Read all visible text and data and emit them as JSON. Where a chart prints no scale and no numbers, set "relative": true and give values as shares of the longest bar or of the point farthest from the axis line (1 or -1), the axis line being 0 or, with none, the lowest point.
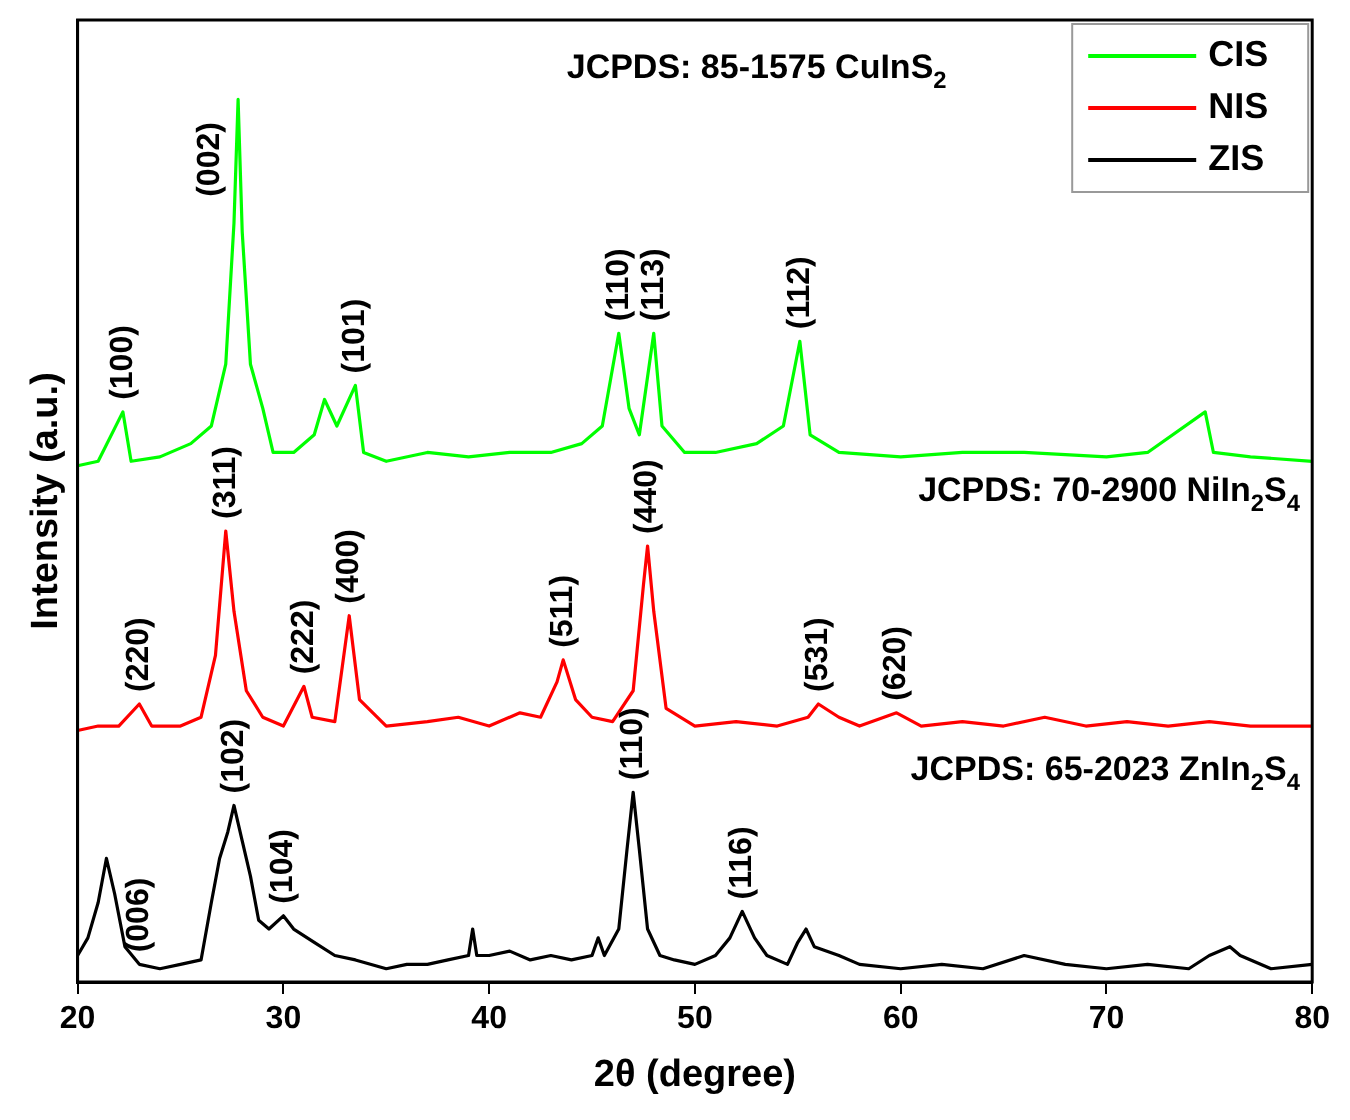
{
  "chart_data": {
    "type": "line",
    "relative": true,
    "xlabel": "2θ (degree)",
    "ylabel": "Intensity (a.u.)",
    "xlim": [
      20,
      80
    ],
    "xticks": [
      20,
      30,
      40,
      50,
      60,
      70,
      80
    ],
    "legend": "top right",
    "marker": "none",
    "line_style": "solid",
    "series": [
      {
        "name": "CIS",
        "color": "#00ff00",
        "x": [
          20,
          21,
          22.2,
          22.6,
          24,
          25.5,
          26.5,
          27.2,
          27.6,
          27.8,
          28,
          28.4,
          29,
          29.5,
          30.5,
          31.5,
          32,
          32.6,
          33.5,
          33.9,
          35,
          37,
          39,
          41,
          43,
          44.5,
          45.5,
          46.3,
          46.8,
          47.3,
          48,
          48.4,
          49.5,
          51,
          53,
          54.3,
          55.1,
          55.6,
          57,
          60,
          63,
          66,
          70,
          72,
          74.8,
          75.2,
          77,
          80
        ],
        "values": [
          0.585,
          0.59,
          0.646,
          0.59,
          0.595,
          0.61,
          0.63,
          0.7,
          0.86,
          1.0,
          0.85,
          0.7,
          0.65,
          0.6,
          0.6,
          0.62,
          0.66,
          0.63,
          0.676,
          0.6,
          0.59,
          0.6,
          0.595,
          0.6,
          0.6,
          0.61,
          0.63,
          0.735,
          0.65,
          0.62,
          0.735,
          0.63,
          0.6,
          0.6,
          0.61,
          0.63,
          0.726,
          0.62,
          0.6,
          0.595,
          0.6,
          0.6,
          0.595,
          0.6,
          0.646,
          0.6,
          0.595,
          0.59
        ]
      },
      {
        "name": "NIS",
        "color": "#ff0000",
        "x": [
          20,
          21,
          22,
          23,
          23.6,
          25,
          26,
          26.7,
          27.2,
          27.6,
          28.2,
          29,
          30,
          31,
          31.4,
          32.5,
          33.2,
          33.7,
          35,
          37,
          38.5,
          40,
          41.5,
          42.5,
          43.3,
          43.6,
          44.2,
          45,
          46,
          47,
          47.5,
          47.7,
          48,
          48.6,
          50,
          52,
          54,
          55.5,
          56,
          57,
          58,
          59.8,
          61,
          63,
          65,
          67,
          69,
          71,
          73,
          75,
          77,
          80
        ],
        "values": [
          0.285,
          0.29,
          0.29,
          0.315,
          0.29,
          0.29,
          0.3,
          0.37,
          0.511,
          0.42,
          0.33,
          0.3,
          0.29,
          0.335,
          0.3,
          0.295,
          0.415,
          0.32,
          0.29,
          0.295,
          0.3,
          0.29,
          0.305,
          0.3,
          0.34,
          0.365,
          0.32,
          0.3,
          0.295,
          0.33,
          0.45,
          0.494,
          0.42,
          0.31,
          0.29,
          0.295,
          0.29,
          0.3,
          0.315,
          0.3,
          0.29,
          0.305,
          0.29,
          0.295,
          0.29,
          0.3,
          0.29,
          0.295,
          0.29,
          0.295,
          0.29,
          0.29
        ]
      },
      {
        "name": "ZIS",
        "color": "#000000",
        "x": [
          20,
          20.5,
          21,
          21.4,
          21.8,
          22.3,
          23,
          24,
          25,
          26,
          26.5,
          26.9,
          27.3,
          27.6,
          28,
          28.4,
          28.8,
          29.3,
          30,
          30.5,
          31.5,
          32.5,
          33.5,
          35,
          36,
          37,
          38,
          39,
          39.2,
          39.4,
          40,
          41,
          42,
          43,
          44,
          45,
          45.3,
          45.6,
          46.3,
          46.7,
          47,
          47.3,
          47.7,
          48.3,
          49,
          50,
          51,
          51.7,
          52.3,
          52.9,
          53.5,
          54.5,
          55,
          55.4,
          55.8,
          57,
          58,
          60,
          62,
          64,
          66,
          68,
          70,
          72,
          74,
          75,
          76,
          76.5,
          78,
          80
        ],
        "values": [
          0.03,
          0.05,
          0.09,
          0.14,
          0.1,
          0.04,
          0.02,
          0.015,
          0.02,
          0.025,
          0.09,
          0.14,
          0.17,
          0.2,
          0.16,
          0.12,
          0.07,
          0.06,
          0.075,
          0.06,
          0.045,
          0.03,
          0.025,
          0.015,
          0.02,
          0.02,
          0.025,
          0.03,
          0.06,
          0.03,
          0.03,
          0.035,
          0.025,
          0.03,
          0.025,
          0.03,
          0.05,
          0.03,
          0.06,
          0.15,
          0.215,
          0.15,
          0.06,
          0.03,
          0.025,
          0.02,
          0.03,
          0.05,
          0.08,
          0.05,
          0.03,
          0.02,
          0.045,
          0.06,
          0.04,
          0.03,
          0.02,
          0.015,
          0.02,
          0.015,
          0.03,
          0.02,
          0.015,
          0.02,
          0.015,
          0.03,
          0.04,
          0.03,
          0.015,
          0.02
        ]
      }
    ],
    "annotations": [
      "JCPDS: 85-1575 CuInS$_{2}$",
      {
        "text": "(100)",
        "x": 22.2,
        "y": 0.646
      },
      {
        "text": "(002)",
        "x": 27.8,
        "y": 1.0
      },
      {
        "text": "(101)",
        "x": 33.5,
        "y": 0.676
      },
      {
        "text": "(110)",
        "x": 46.3,
        "y": 0.735
      },
      {
        "text": "(113)",
        "x": 48,
        "y": 0.735
      },
      {
        "text": "(112)",
        "x": 55.1,
        "y": 0.726
      },
      "JCPDS: 70-2900 NiIn$_{2}$S$_{4}$",
      {
        "text": "(220)",
        "x": 23,
        "y": 0.315
      },
      {
        "text": "(311)",
        "x": 27.2,
        "y": 0.511
      },
      {
        "text": "(222)",
        "x": 31,
        "y": 0.335
      },
      {
        "text": "(400)",
        "x": 33.2,
        "y": 0.415
      },
      {
        "text": "(511)",
        "x": 43.6,
        "y": 0.365
      },
      {
        "text": "(440)",
        "x": 47.7,
        "y": 0.494
      },
      {
        "text": "(531)",
        "x": 56,
        "y": 0.315
      },
      {
        "text": "(620)",
        "x": 59.8,
        "y": 0.305
      },
      "JCPDS: 65-2023 ZnIn$_{2}$S$_{4}$",
      {
        "text": "(006)",
        "x": 23,
        "y": 0.02
      },
      {
        "text": "(102)",
        "x": 27.6,
        "y": 0.2
      },
      {
        "text": "(104)",
        "x": 30,
        "y": 0.075
      },
      {
        "text": "(110)",
        "x": 47,
        "y": 0.215
      },
      {
        "text": "(116)",
        "x": 52.3,
        "y": 0.08
      }
    ]
  }
}
